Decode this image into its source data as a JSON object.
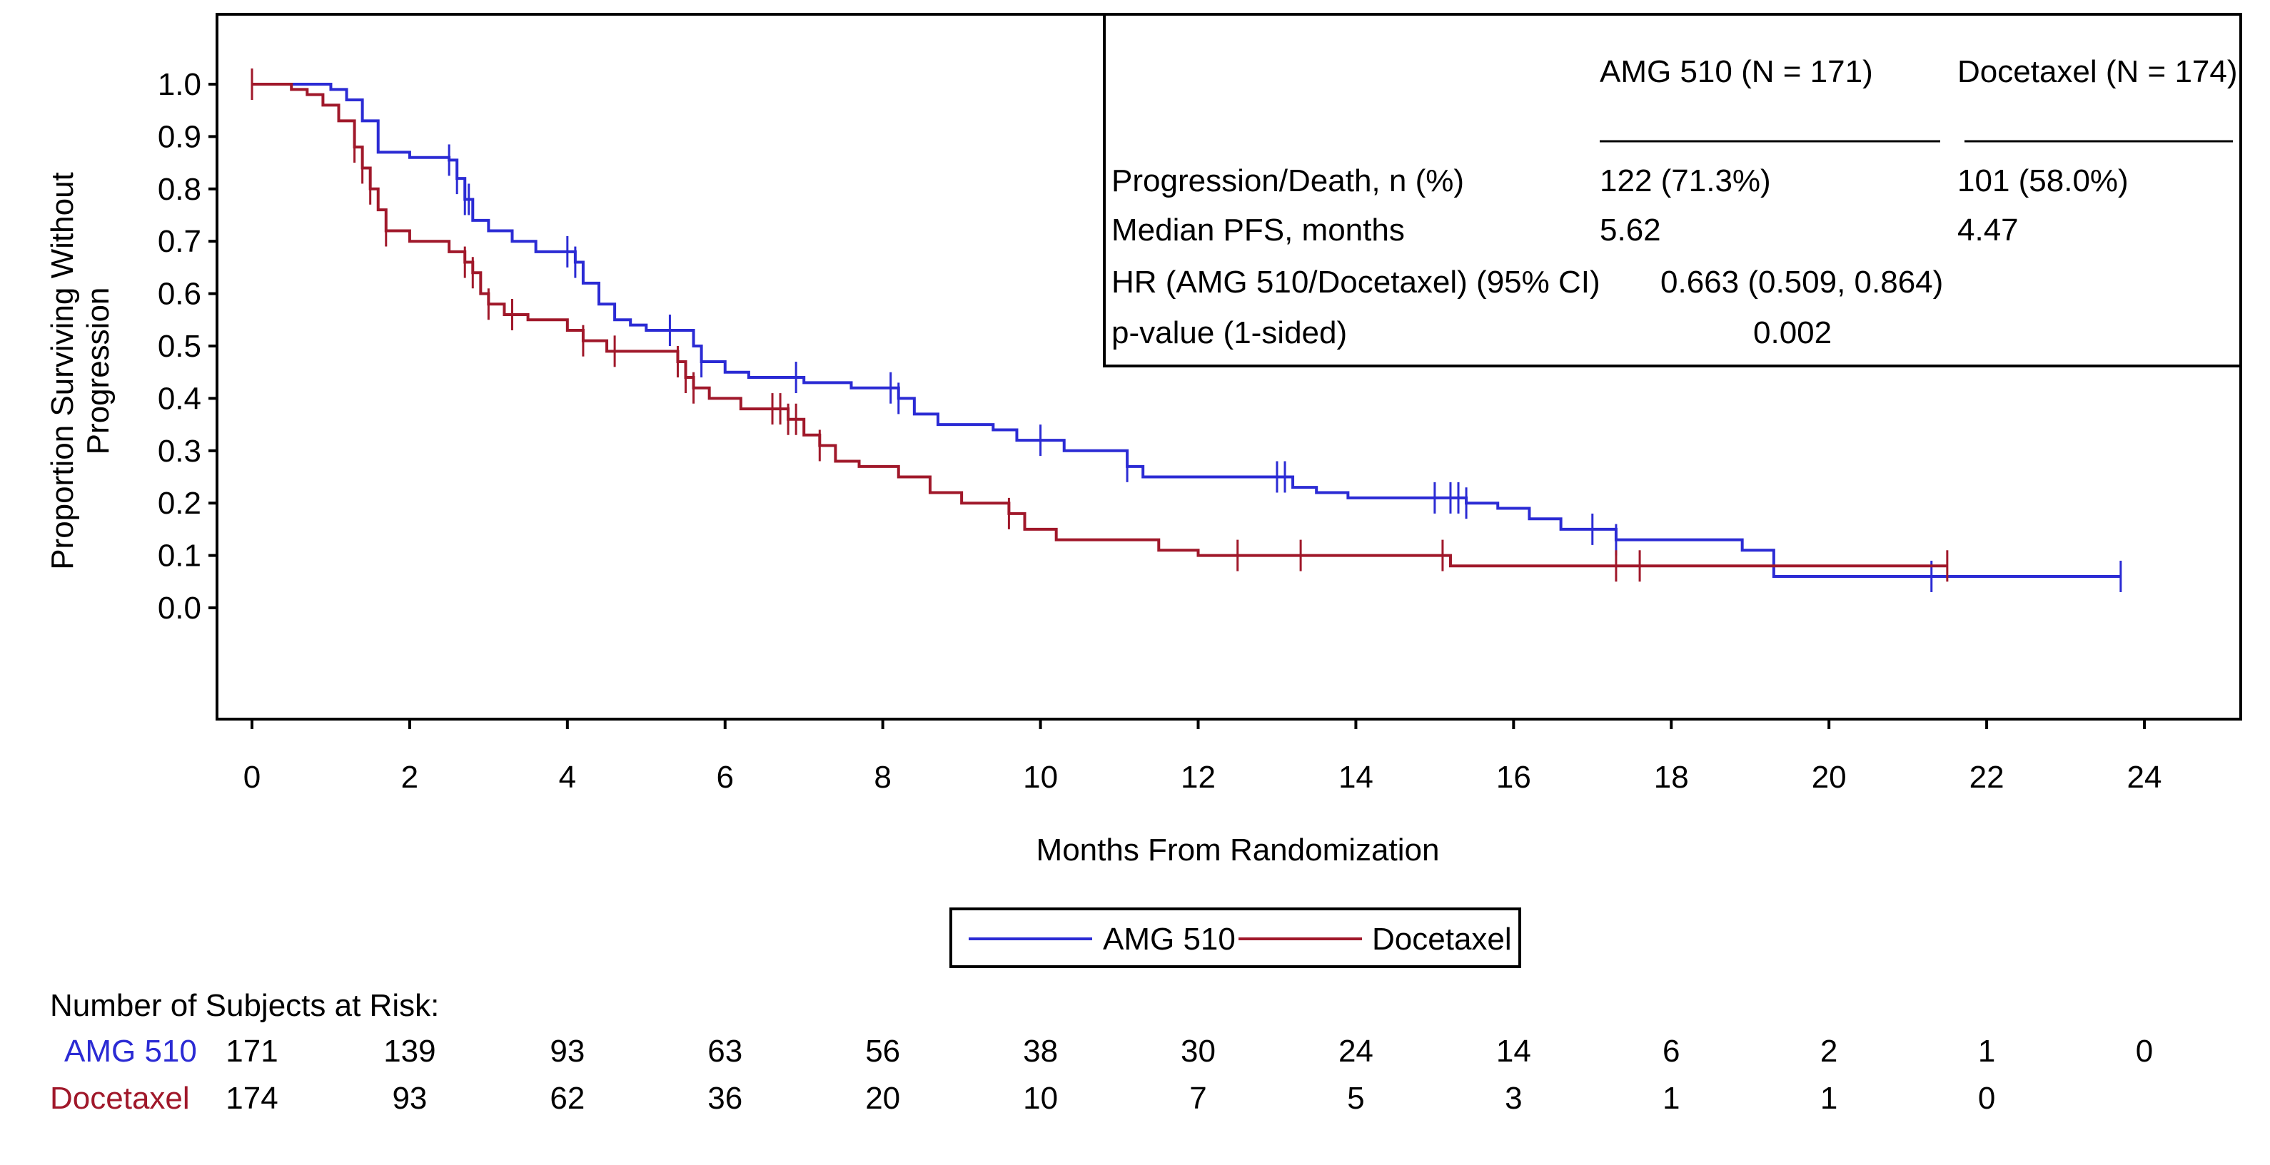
{
  "chart_data": {
    "type": "line",
    "subtype": "kaplan-meier step",
    "xlabel": "Months From Randomization",
    "ylabel_lines": [
      "Proportion Surviving Without",
      "Progression"
    ],
    "xlim": [
      0,
      24
    ],
    "ylim": [
      0,
      1
    ],
    "x_ticks": [
      "0",
      "2",
      "4",
      "6",
      "8",
      "10",
      "12",
      "14",
      "16",
      "18",
      "20",
      "22",
      "24"
    ],
    "y_ticks": [
      "1.0",
      "0.9",
      "0.8",
      "0.7",
      "0.6",
      "0.5",
      "0.4",
      "0.3",
      "0.2",
      "0.1",
      "0.0"
    ],
    "grid": false,
    "legend": {
      "position": "bottom",
      "entries": [
        "AMG 510",
        "Docetaxel"
      ]
    },
    "series": [
      {
        "name": "AMG 510",
        "color": "#2b2bd4",
        "steps": [
          [
            0,
            1.0
          ],
          [
            1.0,
            0.99
          ],
          [
            1.2,
            0.97
          ],
          [
            1.4,
            0.93
          ],
          [
            1.6,
            0.87
          ],
          [
            2.0,
            0.86
          ],
          [
            2.5,
            0.855
          ],
          [
            2.6,
            0.82
          ],
          [
            2.7,
            0.78
          ],
          [
            2.8,
            0.74
          ],
          [
            3.0,
            0.72
          ],
          [
            3.3,
            0.7
          ],
          [
            3.6,
            0.68
          ],
          [
            4.1,
            0.66
          ],
          [
            4.2,
            0.62
          ],
          [
            4.4,
            0.58
          ],
          [
            4.6,
            0.55
          ],
          [
            4.8,
            0.54
          ],
          [
            5.0,
            0.53
          ],
          [
            5.6,
            0.5
          ],
          [
            5.7,
            0.47
          ],
          [
            6.0,
            0.45
          ],
          [
            6.3,
            0.44
          ],
          [
            7.0,
            0.43
          ],
          [
            7.6,
            0.42
          ],
          [
            8.2,
            0.4
          ],
          [
            8.4,
            0.37
          ],
          [
            8.7,
            0.35
          ],
          [
            9.4,
            0.34
          ],
          [
            9.7,
            0.32
          ],
          [
            10.3,
            0.3
          ],
          [
            11.1,
            0.27
          ],
          [
            11.3,
            0.25
          ],
          [
            13.2,
            0.23
          ],
          [
            13.5,
            0.22
          ],
          [
            13.9,
            0.21
          ],
          [
            15.4,
            0.2
          ],
          [
            15.8,
            0.19
          ],
          [
            16.2,
            0.17
          ],
          [
            16.6,
            0.15
          ],
          [
            17.3,
            0.13
          ],
          [
            18.9,
            0.11
          ],
          [
            19.3,
            0.06
          ]
        ],
        "end": 23.7,
        "censored": [
          2.5,
          2.6,
          2.7,
          2.75,
          4.0,
          4.1,
          5.3,
          5.7,
          6.9,
          8.1,
          8.2,
          10.0,
          11.1,
          13.0,
          13.1,
          15.0,
          15.2,
          15.3,
          15.4,
          17.0,
          17.3,
          21.3,
          23.7
        ]
      },
      {
        "name": "Docetaxel",
        "color": "#a0182a",
        "steps": [
          [
            0,
            1.0
          ],
          [
            0.5,
            0.99
          ],
          [
            0.7,
            0.98
          ],
          [
            0.9,
            0.96
          ],
          [
            1.1,
            0.93
          ],
          [
            1.3,
            0.88
          ],
          [
            1.4,
            0.84
          ],
          [
            1.5,
            0.8
          ],
          [
            1.6,
            0.76
          ],
          [
            1.7,
            0.72
          ],
          [
            2.0,
            0.7
          ],
          [
            2.5,
            0.68
          ],
          [
            2.7,
            0.66
          ],
          [
            2.8,
            0.64
          ],
          [
            2.9,
            0.6
          ],
          [
            3.0,
            0.58
          ],
          [
            3.2,
            0.56
          ],
          [
            3.5,
            0.55
          ],
          [
            4.0,
            0.53
          ],
          [
            4.2,
            0.51
          ],
          [
            4.5,
            0.49
          ],
          [
            5.4,
            0.47
          ],
          [
            5.5,
            0.44
          ],
          [
            5.6,
            0.42
          ],
          [
            5.8,
            0.4
          ],
          [
            6.2,
            0.38
          ],
          [
            6.8,
            0.36
          ],
          [
            7.0,
            0.33
          ],
          [
            7.2,
            0.31
          ],
          [
            7.4,
            0.28
          ],
          [
            7.7,
            0.27
          ],
          [
            8.2,
            0.25
          ],
          [
            8.6,
            0.22
          ],
          [
            9.0,
            0.2
          ],
          [
            9.6,
            0.18
          ],
          [
            9.8,
            0.15
          ],
          [
            10.2,
            0.13
          ],
          [
            11.5,
            0.11
          ],
          [
            12.0,
            0.1
          ],
          [
            15.2,
            0.08
          ]
        ],
        "end": 21.5,
        "censored": [
          0,
          1.3,
          1.4,
          1.5,
          1.7,
          2.7,
          2.8,
          3.0,
          3.3,
          4.2,
          4.6,
          5.4,
          5.5,
          5.6,
          6.6,
          6.7,
          6.8,
          6.9,
          7.2,
          9.6,
          12.5,
          13.3,
          15.1,
          17.3,
          17.6,
          21.5
        ]
      }
    ],
    "inset_table": {
      "col_headers": [
        "AMG 510 (N = 171)",
        "Docetaxel (N = 174)"
      ],
      "rows": [
        {
          "label": "Progression/Death, n (%)",
          "amg": "122 (71.3%)",
          "doc": "101 (58.0%)"
        },
        {
          "label": "Median PFS, months",
          "amg": "5.62",
          "doc": "4.47"
        },
        {
          "label": "HR (AMG 510/Docetaxel) (95% CI)",
          "value": "0.663 (0.509, 0.864)"
        },
        {
          "label": "p-value (1-sided)",
          "value": "0.002"
        }
      ]
    },
    "at_risk": {
      "title": "Number of Subjects at Risk:",
      "rows": [
        {
          "label": "AMG 510",
          "color": "#2b2bd4",
          "values": [
            "171",
            "139",
            "93",
            "63",
            "56",
            "38",
            "30",
            "24",
            "14",
            "6",
            "2",
            "1",
            "0"
          ]
        },
        {
          "label": "Docetaxel",
          "color": "#a0182a",
          "values": [
            "174",
            "93",
            "62",
            "36",
            "20",
            "10",
            "7",
            "5",
            "3",
            "1",
            "1",
            "0"
          ]
        }
      ]
    }
  }
}
